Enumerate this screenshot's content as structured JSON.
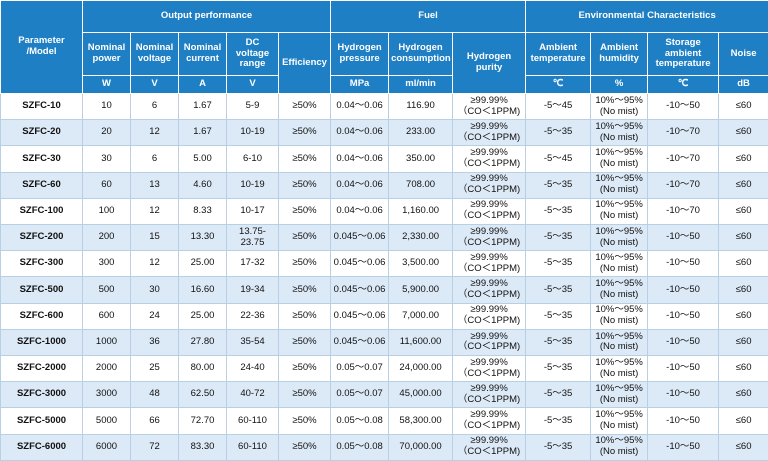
{
  "table": {
    "corner": "Parameter /Model",
    "groups": [
      "Output performance",
      "Fuel",
      "Environmental Characteristics"
    ],
    "columns": [
      {
        "name": "Nominal power",
        "unit": "W"
      },
      {
        "name": "Nominal voltage",
        "unit": "V"
      },
      {
        "name": "Nominal current",
        "unit": "A"
      },
      {
        "name": "DC voltage range",
        "unit": "V"
      },
      {
        "name": "Efficiency"
      },
      {
        "name": "Hydrogen pressure",
        "unit": "MPa"
      },
      {
        "name": "Hydrogen consumption",
        "unit": "ml/min"
      },
      {
        "name": "Hydrogen purity"
      },
      {
        "name": "Ambient temperature",
        "unit": "℃"
      },
      {
        "name": "Ambient humidity",
        "unit": "%"
      },
      {
        "name": "Storage ambient temperature",
        "unit": "℃"
      },
      {
        "name": "Noise",
        "unit": "dB"
      }
    ],
    "rows": [
      [
        "SZFC-10",
        "10",
        "6",
        "1.67",
        "5-9",
        "≥50%",
        "0.04～0.06",
        "116.90",
        [
          "≥99.99%",
          "（CO＜1PPM)"
        ],
        "-5～45",
        [
          "10%～95%",
          "(No mist)"
        ],
        "-10～50",
        "≤60"
      ],
      [
        "SZFC-20",
        "20",
        "12",
        "1.67",
        "10-19",
        "≥50%",
        "0.04～0.06",
        "233.00",
        [
          "≥99.99%",
          "（CO＜1PPM)"
        ],
        "-5～35",
        [
          "10%～95%",
          "(No mist)"
        ],
        "-10～70",
        "≤60"
      ],
      [
        "SZFC-30",
        "30",
        "6",
        "5.00",
        "6-10",
        "≥50%",
        "0.04～0.06",
        "350.00",
        [
          "≥99.99%",
          "（CO＜1PPM)"
        ],
        "-5～45",
        [
          "10%～95%",
          "(No mist)"
        ],
        "-10～70",
        "≤60"
      ],
      [
        "SZFC-60",
        "60",
        "13",
        "4.60",
        "10-19",
        "≥50%",
        "0.04～0.06",
        "708.00",
        [
          "≥99.99%",
          "（CO＜1PPM)"
        ],
        "-5～35",
        [
          "10%～95%",
          "(No mist)"
        ],
        "-10～70",
        "≤60"
      ],
      [
        "SZFC-100",
        "100",
        "12",
        "8.33",
        "10-17",
        "≥50%",
        "0.04～0.06",
        "1,160.00",
        [
          "≥99.99%",
          "（CO＜1PPM)"
        ],
        "-5～35",
        [
          "10%～95%",
          "(No mist)"
        ],
        "-10～70",
        "≤60"
      ],
      [
        "SZFC-200",
        "200",
        "15",
        "13.30",
        "13.75-23.75",
        "≥50%",
        "0.045～0.06",
        "2,330.00",
        [
          "≥99.99%",
          "（CO＜1PPM)"
        ],
        "-5～35",
        [
          "10%～95%",
          "(No mist)"
        ],
        "-10～50",
        "≤60"
      ],
      [
        "SZFC-300",
        "300",
        "12",
        "25.00",
        "17-32",
        "≥50%",
        "0.045～0.06",
        "3,500.00",
        [
          "≥99.99%",
          "（CO＜1PPM)"
        ],
        "-5～35",
        [
          "10%～95%",
          "(No mist)"
        ],
        "-10～50",
        "≤60"
      ],
      [
        "SZFC-500",
        "500",
        "30",
        "16.60",
        "19-34",
        "≥50%",
        "0.045～0.06",
        "5,900.00",
        [
          "≥99.99%",
          "（CO＜1PPM)"
        ],
        "-5～35",
        [
          "10%～95%",
          "(No mist)"
        ],
        "-10～50",
        "≤60"
      ],
      [
        "SZFC-600",
        "600",
        "24",
        "25.00",
        "22-36",
        "≥50%",
        "0.045～0.06",
        "7,000.00",
        [
          "≥99.99%",
          "（CO＜1PPM)"
        ],
        "-5～35",
        [
          "10%～95%",
          "(No mist)"
        ],
        "-10～50",
        "≤60"
      ],
      [
        "SZFC-1000",
        "1000",
        "36",
        "27.80",
        "35-54",
        "≥50%",
        "0.045～0.06",
        "11,600.00",
        [
          "≥99.99%",
          "（CO＜1PPM)"
        ],
        "-5～35",
        [
          "10%～95%",
          "(No mist)"
        ],
        "-10～50",
        "≤60"
      ],
      [
        "SZFC-2000",
        "2000",
        "25",
        "80.00",
        "24-40",
        "≥50%",
        "0.05～0.07",
        "24,000.00",
        [
          "≥99.99%",
          "（CO＜1PPM)"
        ],
        "-5～35",
        [
          "10%～95%",
          "(No mist)"
        ],
        "-10～50",
        "≤60"
      ],
      [
        "SZFC-3000",
        "3000",
        "48",
        "62.50",
        "40-72",
        "≥50%",
        "0.05～0.07",
        "45,000.00",
        [
          "≥99.99%",
          "（CO＜1PPM)"
        ],
        "-5～35",
        [
          "10%～95%",
          "(No mist)"
        ],
        "-10～50",
        "≤60"
      ],
      [
        "SZFC-5000",
        "5000",
        "66",
        "72.70",
        "60-110",
        "≥50%",
        "0.05～0.08",
        "58,300.00",
        [
          "≥99.99%",
          "（CO＜1PPM)"
        ],
        "-5～35",
        [
          "10%～95%",
          "(No mist)"
        ],
        "-10～50",
        "≤60"
      ],
      [
        "SZFC-6000",
        "6000",
        "72",
        "83.30",
        "60-110",
        "≥50%",
        "0.05～0.08",
        "70,000.00",
        [
          "≥99.99%",
          "（CO＜1PPM)"
        ],
        "-5～35",
        [
          "10%～95%",
          "(No mist)"
        ],
        "-10～50",
        "≤60"
      ]
    ]
  }
}
